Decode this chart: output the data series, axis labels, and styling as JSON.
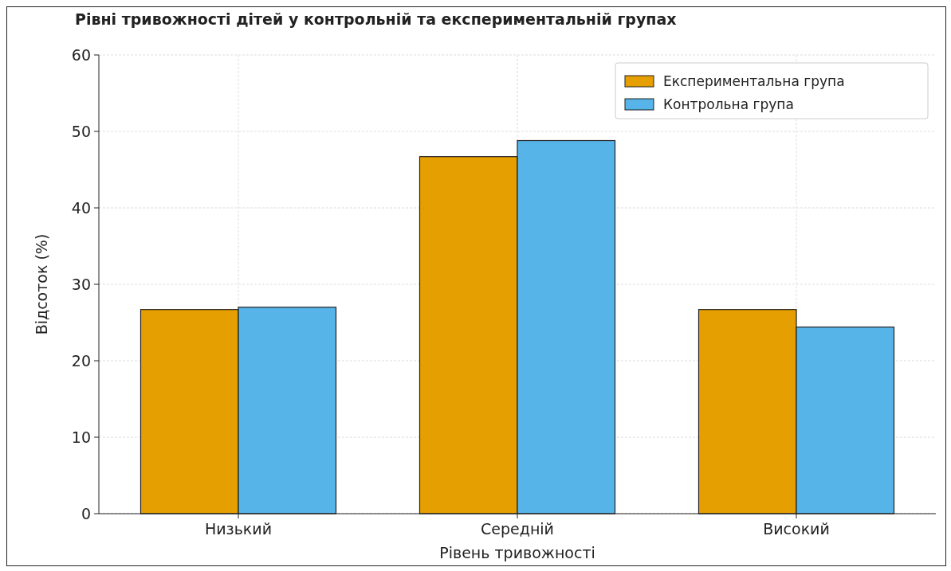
{
  "chart_data": {
    "type": "bar",
    "title": "Рівні тривожності дітей у контрольній та експериментальній групах",
    "xlabel": "Рівень тривожності",
    "ylabel": "Відсоток (%)",
    "categories": [
      "Низький",
      "Середній",
      "Високий"
    ],
    "series": [
      {
        "name": "Експериментальна група",
        "color": "#e69f00",
        "values": [
          26.7,
          46.7,
          26.7
        ]
      },
      {
        "name": "Контрольна група",
        "color": "#56b4e9",
        "values": [
          27.0,
          48.8,
          24.4
        ]
      }
    ],
    "ylim": [
      0,
      60
    ],
    "yticks": [
      0,
      10,
      20,
      30,
      40,
      50,
      60
    ],
    "grid": true,
    "legend": "top right"
  }
}
